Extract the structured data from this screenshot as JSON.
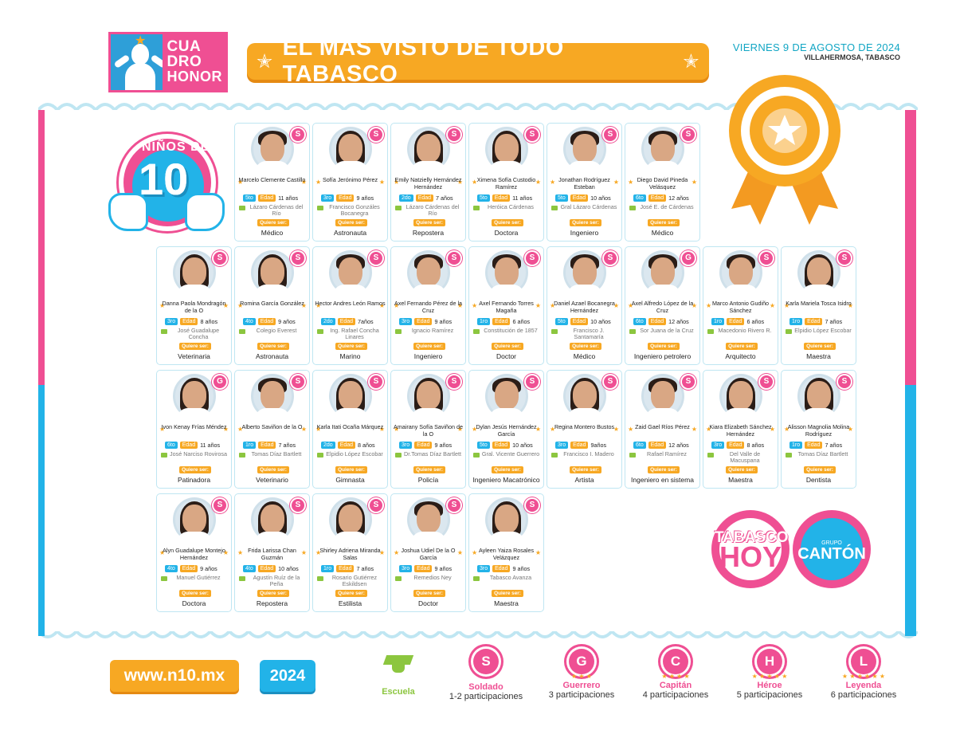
{
  "header": {
    "logo_line1": "CUA",
    "logo_line2": "DRO",
    "logo_line3": "HONOR",
    "banner": "EL MÁS VISTO DE TODO TABASCO",
    "date": "VIERNES 9 DE AGOSTO DE 2024",
    "place": "VILLAHERMOSA, TABASCO"
  },
  "section": {
    "label": "NIÑOS DE",
    "number": "10"
  },
  "card_labels": {
    "edad": "Edad",
    "quiere": "Quiere ser:"
  },
  "kids": [
    {
      "name": "Marcelo Clemente Castillo",
      "grade": "5to",
      "age": "11 años",
      "school": "Lázaro Cárdenas del Río",
      "prof": "Médico",
      "badge": "S"
    },
    {
      "name": "Sofía Jerónimo Pérez",
      "grade": "3ro",
      "age": "9 años",
      "school": "Francisco Gonzáles Bocanegra",
      "prof": "Astronauta",
      "badge": "S"
    },
    {
      "name": "Emily Natzielly Hernández Hernández",
      "grade": "2do",
      "age": "7 años",
      "school": "Lázaro Cárdenas del Río",
      "prof": "Repostera",
      "badge": "S"
    },
    {
      "name": "Ximena Sofía Custodio Ramírez",
      "grade": "5to",
      "age": "11 años",
      "school": "Heróica Cárdenas",
      "prof": "Doctora",
      "badge": "S"
    },
    {
      "name": "Jonathan Rodríguez Esteban",
      "grade": "5to",
      "age": "10 años",
      "school": "Gral Lázaro Cárdenas",
      "prof": "Ingeniero",
      "badge": "S"
    },
    {
      "name": "Diego David Pineda Velásquez",
      "grade": "6to",
      "age": "12 años",
      "school": "José E. de Cárdenas",
      "prof": "Médico",
      "badge": "S"
    },
    {
      "name": "Danna Paola Mondragón de la O",
      "grade": "3ro",
      "age": "8 años",
      "school": "José Guadalupe Concha",
      "prof": "Veterinaria",
      "badge": "S"
    },
    {
      "name": "Romina García González",
      "grade": "4to",
      "age": "9 años",
      "school": "Colegio Everest",
      "prof": "Astronauta",
      "badge": "S"
    },
    {
      "name": "Hector Andres León Ramos",
      "grade": "2do",
      "age": "7años",
      "school": "Ing. Rafael Concha Linares",
      "prof": "Marino",
      "badge": "S"
    },
    {
      "name": "Axel Fernando Pérez de la Cruz",
      "grade": "3ro",
      "age": "9 años",
      "school": "Ignacio Ramírez",
      "prof": "Ingeniero",
      "badge": "S"
    },
    {
      "name": "Axel Fernando Torres Magaña",
      "grade": "1ro",
      "age": "6 años",
      "school": "Constitución de 1857",
      "prof": "Doctor",
      "badge": "S"
    },
    {
      "name": "Daniel Azael Bocanegra Hernández",
      "grade": "5to",
      "age": "10 años",
      "school": "Francisco J. Santamaría",
      "prof": "Médico",
      "badge": "S"
    },
    {
      "name": "Axel Alfredo López de la Cruz",
      "grade": "6to",
      "age": "12 años",
      "school": "Sor Juana de la Cruz",
      "prof": "Ingeniero petrolero",
      "badge": "G"
    },
    {
      "name": "Marco Antonio Gudiño Sánchez",
      "grade": "1ro",
      "age": "6 años",
      "school": "Macedonio Rivero R.",
      "prof": "Arquitecto",
      "badge": "S"
    },
    {
      "name": "Karla Mariela Tosca Isidro",
      "grade": "1ro",
      "age": "7 años",
      "school": "Elpidio López Escobar",
      "prof": "Maestra",
      "badge": "S"
    },
    {
      "name": "Ivon Kenay Frías Méndez",
      "grade": "6to",
      "age": "11 años",
      "school": "José Narciso Rovirosa",
      "prof": "Patinadora",
      "badge": "G"
    },
    {
      "name": "Alberto Saviñon de la O",
      "grade": "1ro",
      "age": "7 años",
      "school": "Tomas Díaz Bartlett",
      "prof": "Veterinario",
      "badge": "S"
    },
    {
      "name": "Karla Itati Ocaña Márquez",
      "grade": "2do",
      "age": "8 años",
      "school": "Elpidio López Escobar",
      "prof": "Gimnasta",
      "badge": "S"
    },
    {
      "name": "Amairany Sofía Saviñon de la O",
      "grade": "3ro",
      "age": "9 años",
      "school": "Dr.Tomas Díaz Bartlett",
      "prof": "Policía",
      "badge": "S"
    },
    {
      "name": "Dylan Jesús Hernández García",
      "grade": "5to",
      "age": "10 años",
      "school": "Gral. Vicente Guerrero",
      "prof": "Ingeniero Macatrónico",
      "badge": "S"
    },
    {
      "name": "Regina Montero Bustos",
      "grade": "3ro",
      "age": "9años",
      "school": "Francisco I. Madero",
      "prof": "Artista",
      "badge": "S"
    },
    {
      "name": "Zaid Gael Ríos Pérez",
      "grade": "6to",
      "age": "12 años",
      "school": "Rafael Ramírez",
      "prof": "Ingeniero en sistema",
      "badge": "S"
    },
    {
      "name": "Kiara Elizabeth Sánchez Hernández",
      "grade": "3ro",
      "age": "8 años",
      "school": "Del Valle de Macuspana",
      "prof": "Maestra",
      "badge": "S"
    },
    {
      "name": "Alisson Magnolia Molina Rodríguez",
      "grade": "1ro",
      "age": "7 años",
      "school": "Tomas Díaz Bartlett",
      "prof": "Dentista",
      "badge": "S"
    },
    {
      "name": "Alyn Guadalupe Montejo Hernández",
      "grade": "4to",
      "age": "9 años",
      "school": "Manuel Gutiérrez",
      "prof": "Doctora",
      "badge": "S"
    },
    {
      "name": "Frida Larissa Chan Guzmán",
      "grade": "4to",
      "age": "10 años",
      "school": "Agustín Ruíz de la Peña",
      "prof": "Repostera",
      "badge": "S"
    },
    {
      "name": "Shirley Adriena Miranda Salas",
      "grade": "1ro",
      "age": "7 años",
      "school": "Rosario Gutiérrez Eskildsen",
      "prof": "Estilista",
      "badge": "S"
    },
    {
      "name": "Joshua Udiel De la O García",
      "grade": "3ro",
      "age": "9 años",
      "school": "Remedios Ney",
      "prof": "Doctor",
      "badge": "S"
    },
    {
      "name": "Ayleen Yaiza Rosales Velázquez",
      "grade": "3ro",
      "age": "9 años",
      "school": "Tabasco Avanza",
      "prof": "Maestra",
      "badge": "S"
    }
  ],
  "footer": {
    "web": "www.n10.mx",
    "year": "2024",
    "legend": [
      {
        "icon": "graduation-cap-icon",
        "title": "Escuela",
        "sub": ""
      },
      {
        "letter": "S",
        "title": "Soldado",
        "sub": "1-2 participaciones",
        "stars": ""
      },
      {
        "letter": "G",
        "title": "Guerrero",
        "sub": "3 participaciones",
        "stars": "★ ★ ★"
      },
      {
        "letter": "C",
        "title": "Capitán",
        "sub": "4 participaciones",
        "stars": "★ ★ ★ ★"
      },
      {
        "letter": "H",
        "title": "Héroe",
        "sub": "5 participaciones",
        "stars": "★ ★ ★ ★ ★"
      },
      {
        "letter": "L",
        "title": "Leyenda",
        "sub": "6 participaciones",
        "stars": "★ ★ ★ ★ ★ ★"
      }
    ]
  },
  "brands": {
    "tabasco": "TABASCO",
    "hoy": "HOY",
    "grupo": "GRUPO",
    "canton": "CANTÓN"
  },
  "colors": {
    "pink": "#ef4f93",
    "blue": "#22b3e8",
    "orange": "#f7a823"
  }
}
